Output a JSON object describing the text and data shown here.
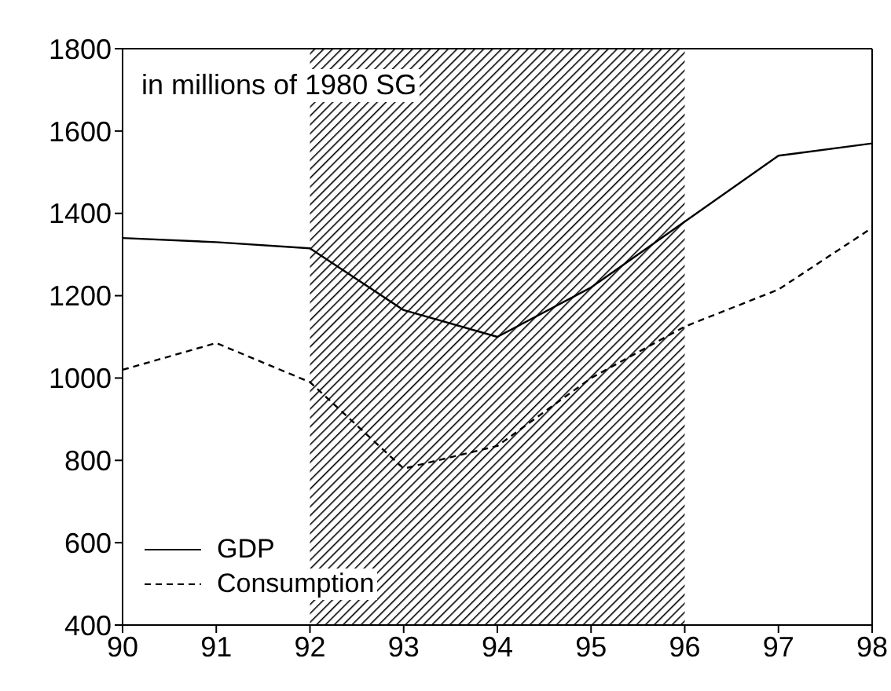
{
  "chart_data": {
    "type": "line",
    "x": [
      90,
      91,
      92,
      93,
      94,
      95,
      96,
      97,
      98
    ],
    "series": [
      {
        "name": "GDP",
        "color": "#000000",
        "line_style": "solid",
        "values": [
          1340,
          1330,
          1315,
          1165,
          1100,
          1220,
          1380,
          1540,
          1570
        ]
      },
      {
        "name": "Consumption",
        "color": "#000000",
        "line_style": "dashed",
        "values": [
          1020,
          1085,
          990,
          780,
          835,
          1000,
          1125,
          1215,
          1365
        ]
      }
    ],
    "xlim": [
      90,
      98
    ],
    "xticks": [
      90,
      91,
      92,
      93,
      94,
      95,
      96,
      97,
      98
    ],
    "ylim": [
      400,
      1800
    ],
    "yticks": [
      400,
      600,
      800,
      1000,
      1200,
      1400,
      1600,
      1800
    ],
    "bands": [
      {
        "axis": "x",
        "from": 92,
        "to": 96,
        "color": "#000000"
      }
    ],
    "annotations": [
      "in millions of 1980 SG"
    ],
    "legend": "bottom left",
    "marker": "none"
  }
}
